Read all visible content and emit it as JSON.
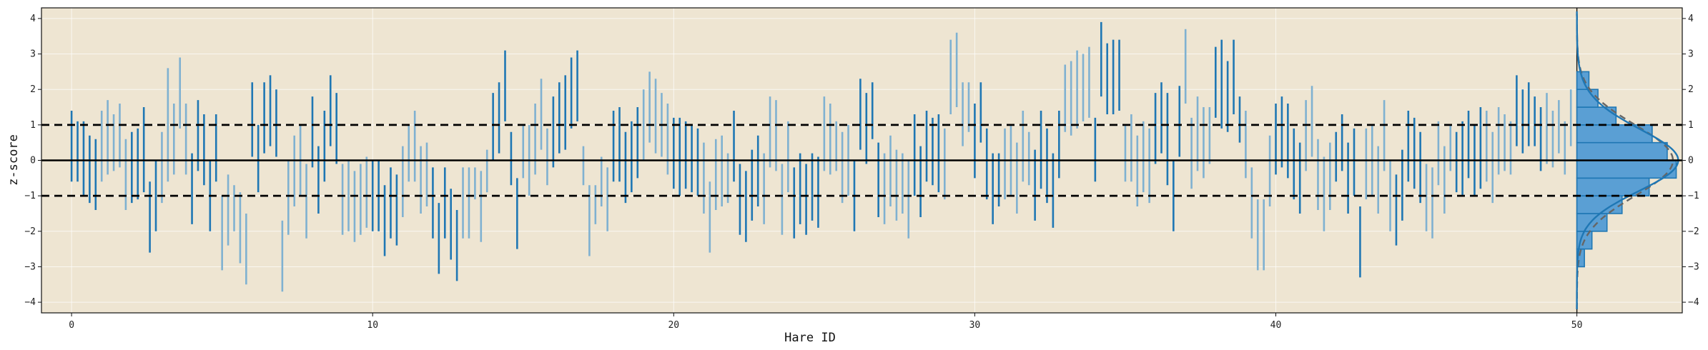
{
  "chart_data": {
    "type": "range-bar",
    "xlabel": "Hare ID",
    "ylabel": "z-score",
    "xlim": [
      -1,
      53.5
    ],
    "ylim": [
      -4.3,
      4.3
    ],
    "xticks": [
      0,
      10,
      20,
      30,
      40,
      50
    ],
    "yticks": [
      -4,
      -3,
      -2,
      -1,
      0,
      1,
      2,
      3,
      4
    ],
    "grid": true,
    "reference_lines": [
      {
        "y": 0,
        "style": "solid"
      },
      {
        "y": 1,
        "style": "dashed"
      },
      {
        "y": -1,
        "style": "dashed"
      }
    ],
    "hare_groups": [
      {
        "id": 0,
        "intervals": [
          [
            -0.6,
            1.4
          ],
          [
            -0.6,
            1.1
          ],
          [
            -1.0,
            1.1
          ],
          [
            -1.2,
            0.7
          ],
          [
            -1.4,
            0.6
          ]
        ]
      },
      {
        "id": 1,
        "intervals": [
          [
            -0.6,
            1.4
          ],
          [
            -0.4,
            1.7
          ],
          [
            -0.3,
            1.3
          ],
          [
            -0.2,
            1.6
          ],
          [
            -1.4,
            0.6
          ]
        ]
      },
      {
        "id": 2,
        "intervals": [
          [
            -1.2,
            0.8
          ],
          [
            -1.1,
            0.9
          ],
          [
            -0.9,
            1.5
          ],
          [
            -2.6,
            -0.6
          ],
          [
            -2.0,
            0.0
          ]
        ]
      },
      {
        "id": 3,
        "intervals": [
          [
            -1.2,
            0.8
          ],
          [
            -0.6,
            2.6
          ],
          [
            -0.4,
            1.6
          ],
          [
            0.9,
            2.9
          ],
          [
            -0.4,
            1.6
          ]
        ]
      },
      {
        "id": 4,
        "intervals": [
          [
            -1.8,
            0.2
          ],
          [
            -0.3,
            1.7
          ],
          [
            -0.7,
            1.3
          ],
          [
            -2.0,
            0.0
          ],
          [
            -0.6,
            1.3
          ]
        ]
      },
      {
        "id": 5,
        "intervals": [
          [
            -3.1,
            -1.0
          ],
          [
            -2.4,
            -0.4
          ],
          [
            -2.0,
            -0.7
          ],
          [
            -2.9,
            -0.9
          ],
          [
            -3.5,
            -1.5
          ]
        ]
      },
      {
        "id": 6,
        "intervals": [
          [
            0.1,
            2.2
          ],
          [
            -0.9,
            1.0
          ],
          [
            0.2,
            2.2
          ],
          [
            0.4,
            2.4
          ],
          [
            0.1,
            2.0
          ]
        ]
      },
      {
        "id": 7,
        "intervals": [
          [
            -3.7,
            -1.7
          ],
          [
            -2.1,
            0.0
          ],
          [
            -1.3,
            0.7
          ],
          [
            -1.0,
            1.0
          ],
          [
            -2.2,
            -0.1
          ]
        ]
      },
      {
        "id": 8,
        "intervals": [
          [
            -0.2,
            1.8
          ],
          [
            -1.5,
            0.4
          ],
          [
            -0.6,
            1.4
          ],
          [
            0.4,
            2.4
          ],
          [
            -0.1,
            1.9
          ]
        ]
      },
      {
        "id": 9,
        "intervals": [
          [
            -2.1,
            -0.1
          ],
          [
            -2.0,
            0.0
          ],
          [
            -2.3,
            -0.3
          ],
          [
            -2.1,
            -0.1
          ],
          [
            -1.9,
            0.1
          ]
        ]
      },
      {
        "id": 10,
        "intervals": [
          [
            -2.0,
            0.0
          ],
          [
            -2.0,
            0.0
          ],
          [
            -2.7,
            -0.7
          ],
          [
            -2.2,
            -0.2
          ],
          [
            -2.4,
            -0.4
          ]
        ]
      },
      {
        "id": 11,
        "intervals": [
          [
            -1.6,
            0.4
          ],
          [
            -0.6,
            1.0
          ],
          [
            -0.6,
            1.4
          ],
          [
            -1.5,
            0.4
          ],
          [
            -1.3,
            0.5
          ]
        ]
      },
      {
        "id": 12,
        "intervals": [
          [
            -2.2,
            -0.2
          ],
          [
            -3.2,
            -1.2
          ],
          [
            -2.2,
            -0.2
          ],
          [
            -2.8,
            -0.8
          ],
          [
            -3.4,
            -1.4
          ]
        ]
      },
      {
        "id": 13,
        "intervals": [
          [
            -2.2,
            -0.2
          ],
          [
            -2.2,
            -0.2
          ],
          [
            -1.1,
            -0.2
          ],
          [
            -2.3,
            -0.3
          ],
          [
            -0.9,
            0.3
          ]
        ]
      },
      {
        "id": 14,
        "intervals": [
          [
            0.0,
            1.9
          ],
          [
            0.2,
            2.2
          ],
          [
            1.1,
            3.1
          ],
          [
            -0.7,
            0.8
          ],
          [
            -2.5,
            -0.5
          ]
        ]
      },
      {
        "id": 15,
        "intervals": [
          [
            -0.5,
            1.0
          ],
          [
            -1.0,
            1.0
          ],
          [
            -0.4,
            1.6
          ],
          [
            0.3,
            2.3
          ],
          [
            -0.7,
            0.9
          ]
        ]
      },
      {
        "id": 16,
        "intervals": [
          [
            -0.2,
            1.8
          ],
          [
            0.2,
            2.2
          ],
          [
            0.3,
            2.4
          ],
          [
            0.9,
            2.9
          ],
          [
            1.1,
            3.1
          ]
        ]
      },
      {
        "id": 17,
        "intervals": [
          [
            -0.7,
            0.4
          ],
          [
            -2.7,
            -0.7
          ],
          [
            -1.8,
            -0.7
          ],
          [
            -1.3,
            0.1
          ],
          [
            -2.0,
            -0.2
          ]
        ]
      },
      {
        "id": 18,
        "intervals": [
          [
            -0.6,
            1.4
          ],
          [
            -0.6,
            1.5
          ],
          [
            -1.2,
            0.8
          ],
          [
            -0.9,
            1.1
          ],
          [
            -0.5,
            1.5
          ]
        ]
      },
      {
        "id": 19,
        "intervals": [
          [
            0.0,
            2.0
          ],
          [
            0.5,
            2.5
          ],
          [
            0.2,
            2.3
          ],
          [
            0.1,
            1.9
          ],
          [
            -0.4,
            1.6
          ]
        ]
      },
      {
        "id": 20,
        "intervals": [
          [
            -0.8,
            1.2
          ],
          [
            -1.0,
            1.2
          ],
          [
            -0.8,
            1.1
          ],
          [
            -0.9,
            1.0
          ],
          [
            -1.0,
            0.9
          ]
        ]
      },
      {
        "id": 21,
        "intervals": [
          [
            -1.5,
            0.5
          ],
          [
            -2.6,
            -0.6
          ],
          [
            -1.4,
            0.6
          ],
          [
            -1.3,
            0.7
          ],
          [
            -1.2,
            0.2
          ]
        ]
      },
      {
        "id": 22,
        "intervals": [
          [
            -0.6,
            1.4
          ],
          [
            -2.1,
            -0.1
          ],
          [
            -2.3,
            -0.3
          ],
          [
            -1.7,
            0.3
          ],
          [
            -1.3,
            0.7
          ]
        ]
      },
      {
        "id": 23,
        "intervals": [
          [
            -1.8,
            0.2
          ],
          [
            -0.2,
            1.8
          ],
          [
            -0.3,
            1.7
          ],
          [
            -2.1,
            -0.1
          ],
          [
            -0.9,
            1.1
          ]
        ]
      },
      {
        "id": 24,
        "intervals": [
          [
            -2.2,
            -0.2
          ],
          [
            -1.8,
            0.2
          ],
          [
            -2.1,
            -0.1
          ],
          [
            -1.7,
            0.2
          ],
          [
            -1.9,
            0.1
          ]
        ]
      },
      {
        "id": 25,
        "intervals": [
          [
            -0.3,
            1.8
          ],
          [
            -0.4,
            1.6
          ],
          [
            -0.3,
            1.1
          ],
          [
            -1.2,
            0.8
          ],
          [
            -1.0,
            1.0
          ]
        ]
      },
      {
        "id": 26,
        "intervals": [
          [
            -2.0,
            0.0
          ],
          [
            0.3,
            2.3
          ],
          [
            -0.1,
            1.9
          ],
          [
            0.6,
            2.2
          ],
          [
            -1.6,
            0.5
          ]
        ]
      },
      {
        "id": 27,
        "intervals": [
          [
            -1.8,
            0.2
          ],
          [
            -1.3,
            0.7
          ],
          [
            -1.7,
            0.3
          ],
          [
            -1.5,
            0.2
          ],
          [
            -2.2,
            0.0
          ]
        ]
      },
      {
        "id": 28,
        "intervals": [
          [
            -1.0,
            1.3
          ],
          [
            -1.6,
            0.4
          ],
          [
            -0.6,
            1.4
          ],
          [
            -0.7,
            1.2
          ],
          [
            -0.9,
            1.3
          ]
        ]
      },
      {
        "id": 29,
        "intervals": [
          [
            -1.1,
            0.9
          ],
          [
            1.3,
            3.4
          ],
          [
            1.5,
            3.6
          ],
          [
            0.4,
            2.2
          ],
          [
            0.8,
            2.2
          ]
        ]
      },
      {
        "id": 30,
        "intervals": [
          [
            -0.5,
            1.6
          ],
          [
            0.5,
            2.2
          ],
          [
            -1.1,
            0.9
          ],
          [
            -1.8,
            0.2
          ],
          [
            -1.3,
            0.2
          ]
        ]
      },
      {
        "id": 31,
        "intervals": [
          [
            -1.1,
            0.9
          ],
          [
            -1.0,
            1.0
          ],
          [
            -1.5,
            0.5
          ],
          [
            -0.6,
            1.4
          ],
          [
            -0.7,
            0.8
          ]
        ]
      },
      {
        "id": 32,
        "intervals": [
          [
            -1.7,
            0.3
          ],
          [
            -0.8,
            1.4
          ],
          [
            -1.2,
            0.9
          ],
          [
            -1.9,
            0.2
          ],
          [
            -0.5,
            1.4
          ]
        ]
      },
      {
        "id": 33,
        "intervals": [
          [
            0.8,
            2.7
          ],
          [
            0.7,
            2.8
          ],
          [
            0.9,
            3.1
          ],
          [
            1.1,
            3.0
          ],
          [
            1.2,
            3.2
          ]
        ]
      },
      {
        "id": 34,
        "intervals": [
          [
            -0.6,
            1.2
          ],
          [
            1.8,
            3.9
          ],
          [
            1.3,
            3.3
          ],
          [
            1.3,
            3.4
          ],
          [
            1.4,
            3.4
          ]
        ]
      },
      {
        "id": 35,
        "intervals": [
          [
            -0.6,
            1.0
          ],
          [
            -0.6,
            1.3
          ],
          [
            -1.3,
            0.7
          ],
          [
            -0.9,
            1.1
          ],
          [
            -1.2,
            0.9
          ]
        ]
      },
      {
        "id": 36,
        "intervals": [
          [
            -0.1,
            1.9
          ],
          [
            0.2,
            2.2
          ],
          [
            -0.7,
            1.9
          ],
          [
            -2.0,
            0.0
          ],
          [
            0.1,
            2.1
          ]
        ]
      },
      {
        "id": 37,
        "intervals": [
          [
            1.6,
            3.7
          ],
          [
            -0.8,
            1.2
          ],
          [
            -0.3,
            1.8
          ],
          [
            -0.5,
            1.5
          ],
          [
            -0.1,
            1.5
          ]
        ]
      },
      {
        "id": 38,
        "intervals": [
          [
            1.2,
            3.2
          ],
          [
            0.9,
            3.4
          ],
          [
            0.8,
            2.8
          ],
          [
            1.3,
            3.4
          ],
          [
            0.5,
            1.8
          ]
        ]
      },
      {
        "id": 39,
        "intervals": [
          [
            -0.5,
            1.4
          ],
          [
            -2.2,
            -0.2
          ],
          [
            -3.1,
            -1.1
          ],
          [
            -3.1,
            -1.1
          ],
          [
            -1.3,
            0.7
          ]
        ]
      },
      {
        "id": 40,
        "intervals": [
          [
            -0.4,
            1.6
          ],
          [
            -0.2,
            1.8
          ],
          [
            -0.5,
            1.6
          ],
          [
            -1.1,
            0.9
          ],
          [
            -1.5,
            0.5
          ]
        ]
      },
      {
        "id": 41,
        "intervals": [
          [
            -0.3,
            1.7
          ],
          [
            0.1,
            2.1
          ],
          [
            -1.4,
            0.6
          ],
          [
            -2.0,
            0.1
          ],
          [
            -1.4,
            0.5
          ]
        ]
      },
      {
        "id": 42,
        "intervals": [
          [
            -0.6,
            0.8
          ],
          [
            -0.3,
            1.3
          ],
          [
            -1.5,
            0.5
          ],
          [
            -1.0,
            0.9
          ],
          [
            -3.3,
            -1.3
          ]
        ]
      },
      {
        "id": 43,
        "intervals": [
          [
            -1.1,
            0.9
          ],
          [
            -1.0,
            1.0
          ],
          [
            -1.5,
            0.4
          ],
          [
            -0.3,
            1.7
          ],
          [
            -2.0,
            0.0
          ]
        ]
      },
      {
        "id": 44,
        "intervals": [
          [
            -2.4,
            -0.4
          ],
          [
            -1.7,
            0.3
          ],
          [
            -0.6,
            1.4
          ],
          [
            -0.8,
            1.2
          ],
          [
            -1.2,
            0.8
          ]
        ]
      },
      {
        "id": 45,
        "intervals": [
          [
            -2.0,
            -0.1
          ],
          [
            -2.2,
            -0.2
          ],
          [
            -0.7,
            1.1
          ],
          [
            -1.5,
            0.4
          ],
          [
            -0.3,
            1.0
          ]
        ]
      },
      {
        "id": 46,
        "intervals": [
          [
            -0.9,
            0.8
          ],
          [
            -1.0,
            1.1
          ],
          [
            -0.5,
            1.4
          ],
          [
            -1.0,
            1.0
          ],
          [
            -0.8,
            1.5
          ]
        ]
      },
      {
        "id": 47,
        "intervals": [
          [
            -0.6,
            1.4
          ],
          [
            -1.2,
            0.8
          ],
          [
            -0.4,
            1.5
          ],
          [
            -0.3,
            1.3
          ],
          [
            -0.4,
            1.1
          ]
        ]
      },
      {
        "id": 48,
        "intervals": [
          [
            0.4,
            2.4
          ],
          [
            0.2,
            2.0
          ],
          [
            0.4,
            2.2
          ],
          [
            0.4,
            1.8
          ],
          [
            -0.3,
            1.5
          ]
        ]
      },
      {
        "id": 49,
        "intervals": [
          [
            -0.1,
            1.9
          ],
          [
            -0.2,
            1.4
          ],
          [
            0.2,
            1.7
          ],
          [
            -0.4,
            1.1
          ],
          [
            0.4,
            2.0
          ]
        ]
      }
    ],
    "marginal_histogram": {
      "bins": [
        -4,
        -3.5,
        -3,
        -2.5,
        -2,
        -1.5,
        -1,
        -0.5,
        0,
        0.5,
        1,
        1.5,
        2,
        2.5,
        3,
        3.5,
        4
      ],
      "widths": [
        0.0,
        0.0,
        0.25,
        0.5,
        1.0,
        1.5,
        2.4,
        3.3,
        3.0,
        2.5,
        1.3,
        0.7,
        0.4,
        0.0,
        0.0,
        0.0
      ],
      "normal_curve": {
        "mean": 0,
        "sd": 1,
        "style": "dashed"
      },
      "kde_style": "solid"
    }
  }
}
